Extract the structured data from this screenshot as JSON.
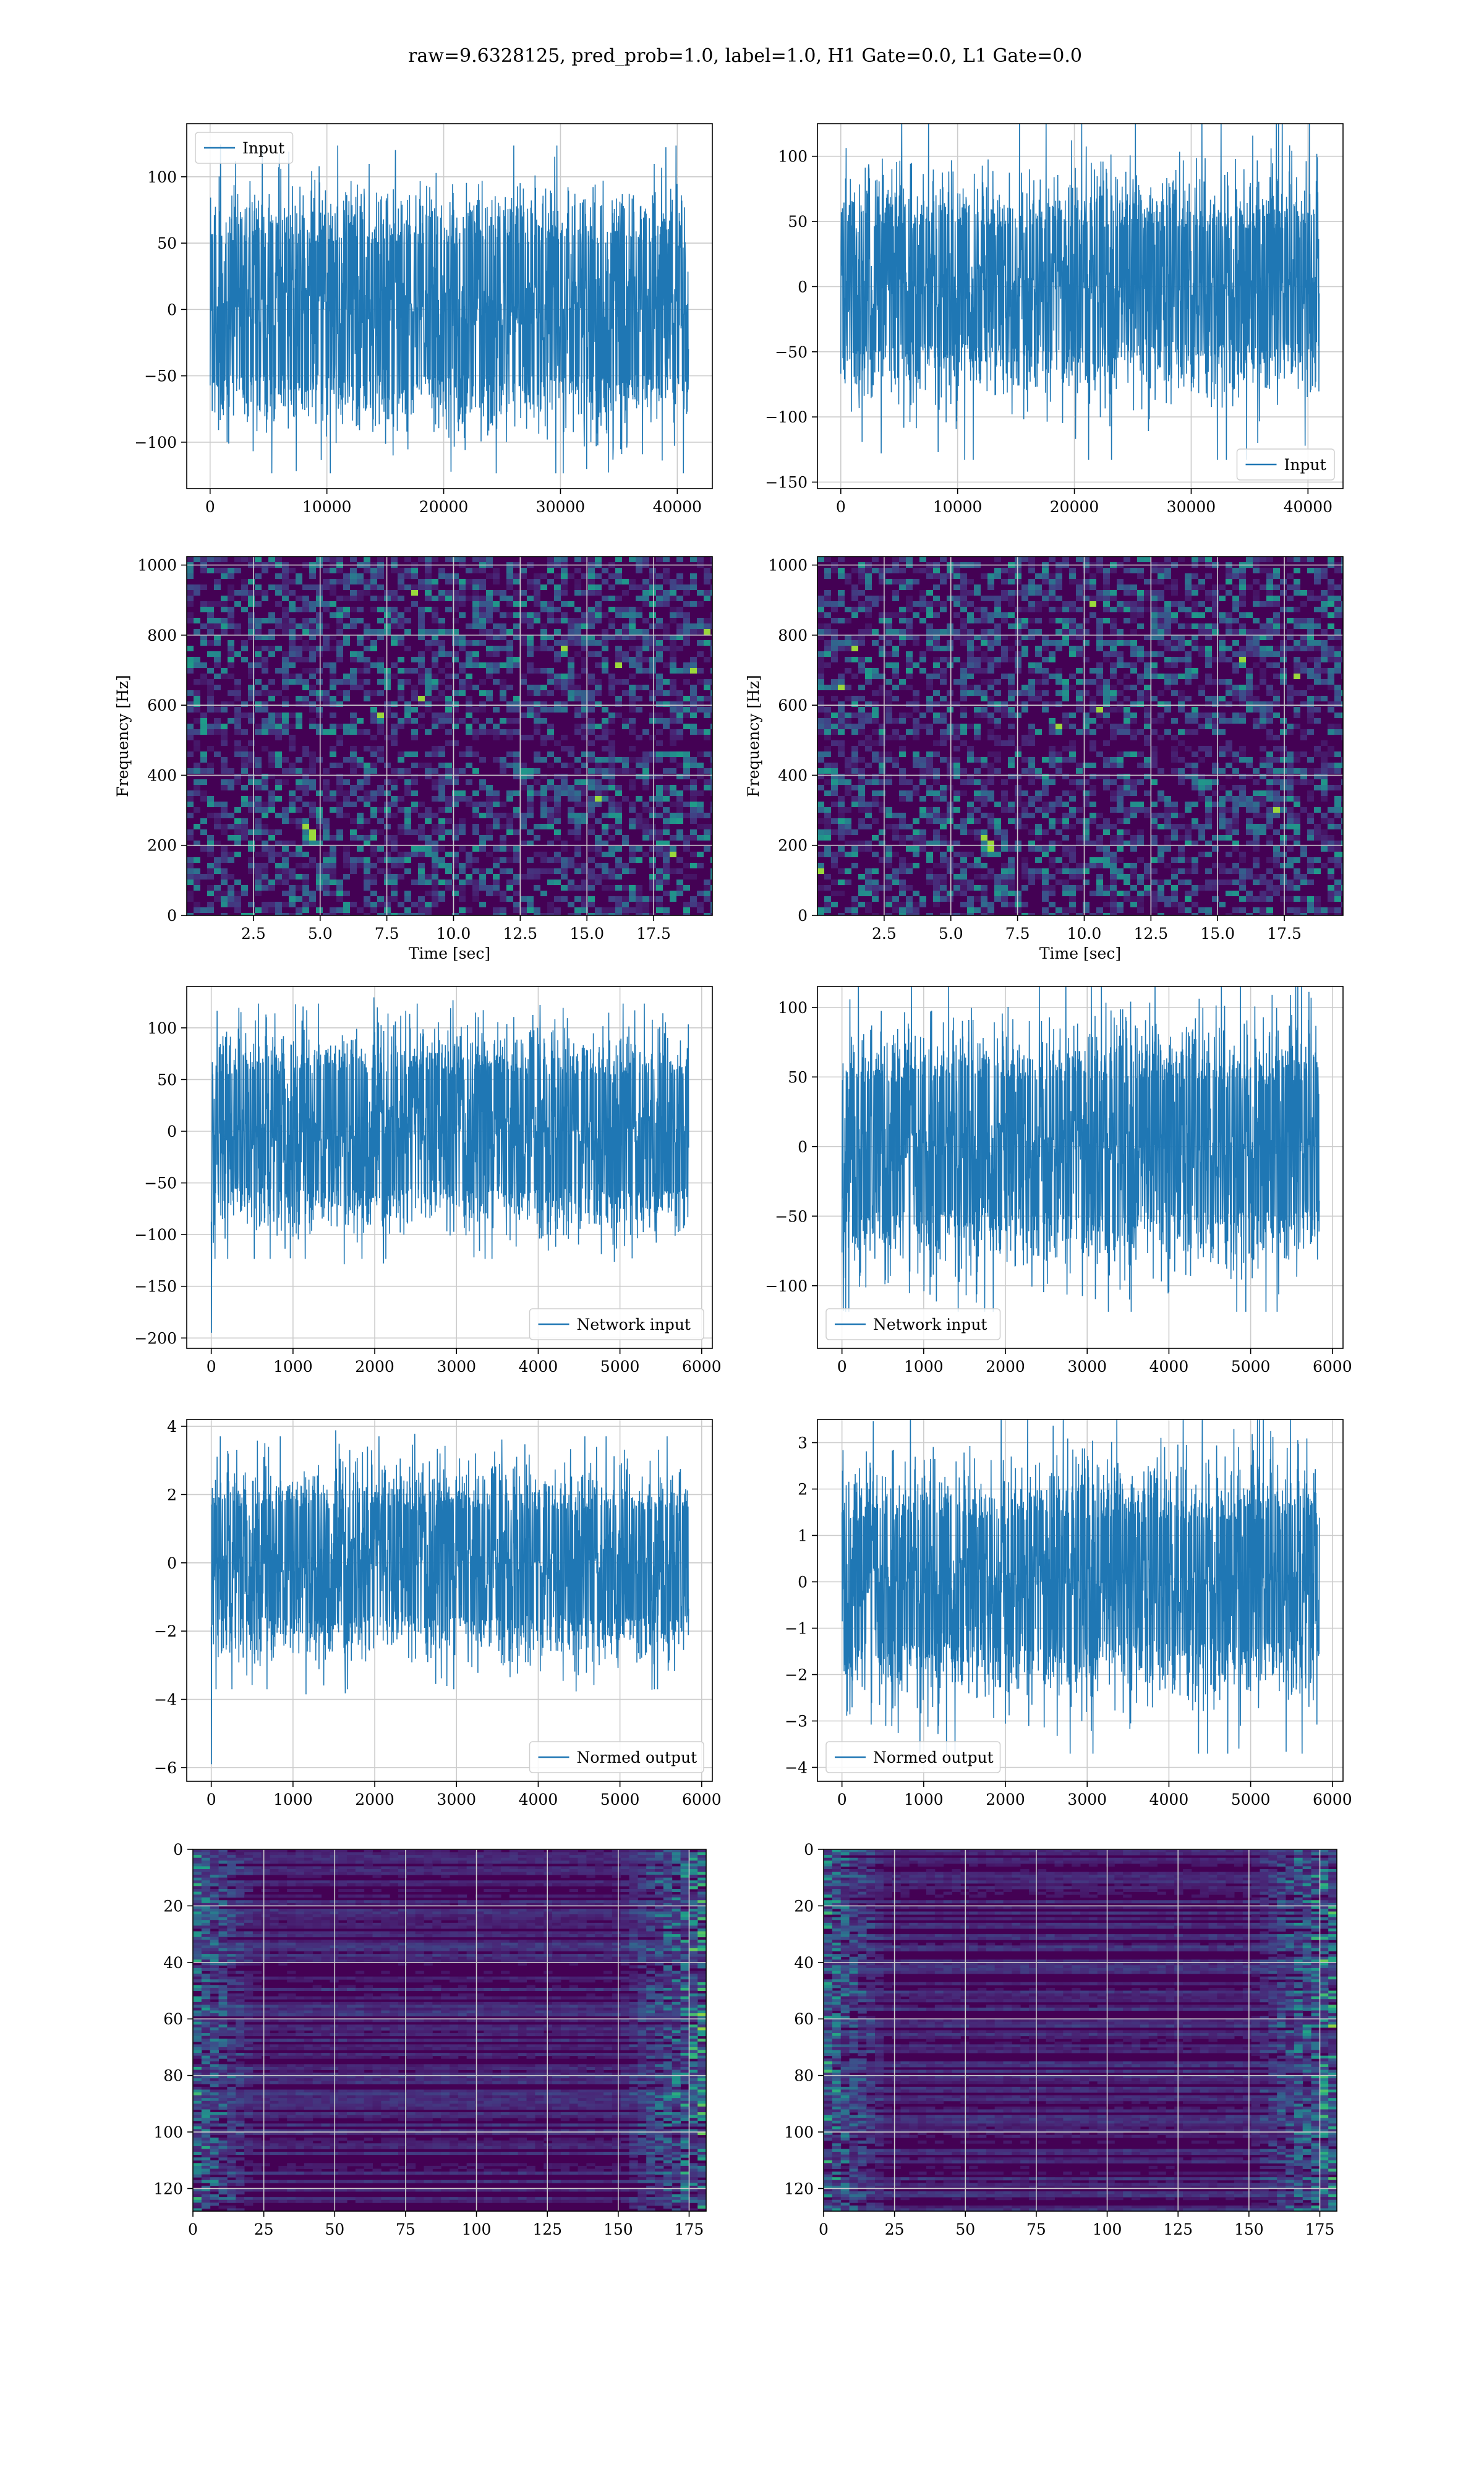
{
  "figure": {
    "title": "raw=9.6328125, pred_prob=1.0, label=1.0, H1 Gate=0.0, L1 Gate=0.0"
  },
  "colors": {
    "series": "#1f77b4",
    "grid": "#cccccc",
    "spectrogram_base": "#440154"
  },
  "chart_data": [
    {
      "id": "h1-input",
      "type": "line",
      "signal": "noise",
      "x_range": [
        0,
        40960
      ],
      "xlim": [
        -2000,
        43000
      ],
      "ylim": [
        -135,
        140
      ],
      "xticks": [
        0,
        10000,
        20000,
        30000,
        40000
      ],
      "yticks": [
        -100,
        -50,
        0,
        50,
        100
      ],
      "amplitude": 25,
      "peak": 130,
      "envelope_min": -85,
      "envelope_max": 90,
      "legend": {
        "label": "Input",
        "loc": "upper-left"
      },
      "xlabel": "",
      "ylabel": ""
    },
    {
      "id": "l1-input",
      "type": "line",
      "signal": "noise",
      "x_range": [
        0,
        40960
      ],
      "xlim": [
        -2000,
        43000
      ],
      "ylim": [
        -155,
        125
      ],
      "xticks": [
        0,
        10000,
        20000,
        30000,
        40000
      ],
      "yticks": [
        -150,
        -100,
        -50,
        0,
        50,
        100
      ],
      "amplitude": 25,
      "peak": 140,
      "envelope_min": -70,
      "envelope_max": 80,
      "legend": {
        "label": "Input",
        "loc": "lower-right"
      },
      "xlabel": "",
      "ylabel": ""
    },
    {
      "id": "h1-spectrogram",
      "type": "heatmap",
      "colormap": "viridis",
      "xlim": [
        0,
        19.7
      ],
      "ylim": [
        0,
        1024
      ],
      "xticks": [
        2.5,
        5.0,
        7.5,
        10.0,
        12.5,
        15.0,
        17.5
      ],
      "yticks": [
        0,
        200,
        400,
        600,
        800,
        1000
      ],
      "xlabel": "Time [sec]",
      "ylabel": "Frequency [Hz]",
      "dark_band_hz": [
        480,
        520
      ],
      "intensity": "low"
    },
    {
      "id": "l1-spectrogram",
      "type": "heatmap",
      "colormap": "viridis",
      "xlim": [
        0,
        19.7
      ],
      "ylim": [
        0,
        1024
      ],
      "xticks": [
        2.5,
        5.0,
        7.5,
        10.0,
        12.5,
        15.0,
        17.5
      ],
      "yticks": [
        0,
        200,
        400,
        600,
        800,
        1000
      ],
      "xlabel": "Time [sec]",
      "ylabel": "Frequency [Hz]",
      "dark_band_hz": [
        480,
        520
      ],
      "intensity": "low"
    },
    {
      "id": "h1-network-input",
      "type": "line",
      "signal": "noise",
      "x_range": [
        0,
        5840
      ],
      "xlim": [
        -300,
        6130
      ],
      "ylim": [
        -210,
        140
      ],
      "xticks": [
        0,
        1000,
        2000,
        3000,
        4000,
        5000,
        6000
      ],
      "yticks": [
        -200,
        -150,
        -100,
        -50,
        0,
        50,
        100
      ],
      "amplitude": 25,
      "peak": 130,
      "envelope_min": -100,
      "envelope_max": 100,
      "spike": {
        "x": 0,
        "y": -195
      },
      "legend": {
        "label": "Network input",
        "loc": "lower-right"
      },
      "xlabel": "",
      "ylabel": ""
    },
    {
      "id": "l1-network-input",
      "type": "line",
      "signal": "noise",
      "x_range": [
        0,
        5840
      ],
      "xlim": [
        -300,
        6130
      ],
      "ylim": [
        -145,
        115
      ],
      "xticks": [
        0,
        1000,
        2000,
        3000,
        4000,
        5000,
        6000
      ],
      "yticks": [
        -100,
        -50,
        0,
        50,
        100
      ],
      "amplitude": 25,
      "peak": 125,
      "envelope_min": -85,
      "envelope_max": 85,
      "legend": {
        "label": "Network input",
        "loc": "lower-left"
      },
      "xlabel": "",
      "ylabel": ""
    },
    {
      "id": "h1-normed-output",
      "type": "line",
      "signal": "noise",
      "x_range": [
        0,
        5840
      ],
      "xlim": [
        -300,
        6130
      ],
      "ylim": [
        -6.4,
        4.2
      ],
      "xticks": [
        0,
        1000,
        2000,
        3000,
        4000,
        5000,
        6000
      ],
      "yticks": [
        -6,
        -4,
        -2,
        0,
        2,
        4
      ],
      "amplitude": 0.75,
      "peak": 3.9,
      "envelope_min": -2.8,
      "envelope_max": 2.8,
      "spike": {
        "x": 0,
        "y": -5.9
      },
      "legend": {
        "label": "Normed output",
        "loc": "lower-right"
      },
      "xlabel": "",
      "ylabel": ""
    },
    {
      "id": "l1-normed-output",
      "type": "line",
      "signal": "noise",
      "x_range": [
        0,
        5840
      ],
      "xlim": [
        -300,
        6130
      ],
      "ylim": [
        -4.3,
        3.5
      ],
      "xticks": [
        0,
        1000,
        2000,
        3000,
        4000,
        5000,
        6000
      ],
      "yticks": [
        -4,
        -3,
        -2,
        -1,
        0,
        1,
        2,
        3
      ],
      "amplitude": 0.75,
      "peak": 3.9,
      "envelope_min": -2.4,
      "envelope_max": 2.4,
      "legend": {
        "label": "Normed output",
        "loc": "lower-left"
      },
      "xlabel": "",
      "ylabel": ""
    },
    {
      "id": "h1-network-spectrogram",
      "type": "heatmap",
      "colormap": "viridis",
      "xlim": [
        0,
        181
      ],
      "ylim": [
        128,
        0
      ],
      "xticks": [
        0,
        25,
        50,
        75,
        100,
        125,
        150,
        175
      ],
      "yticks": [
        0,
        20,
        40,
        60,
        80,
        100,
        120
      ],
      "xlabel": "",
      "ylabel": "",
      "bright_edges": true
    },
    {
      "id": "l1-network-spectrogram",
      "type": "heatmap",
      "colormap": "viridis",
      "xlim": [
        0,
        181
      ],
      "ylim": [
        128,
        0
      ],
      "xticks": [
        0,
        25,
        50,
        75,
        100,
        125,
        150,
        175
      ],
      "yticks": [
        0,
        20,
        40,
        60,
        80,
        100,
        120
      ],
      "xlabel": "",
      "ylabel": "",
      "bright_edges": true
    }
  ]
}
